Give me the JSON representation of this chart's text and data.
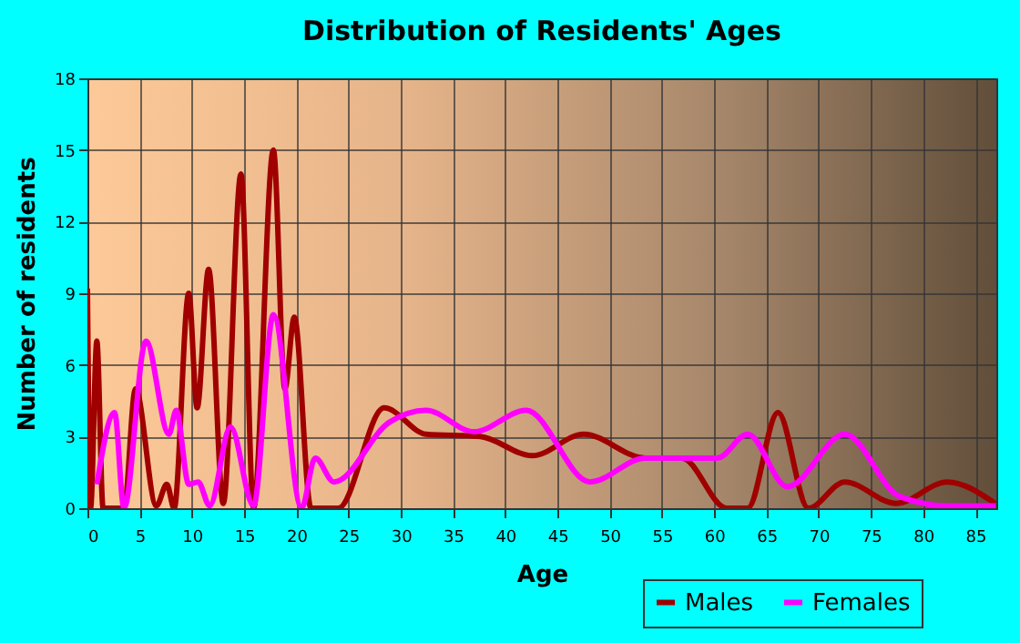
{
  "chart_data": {
    "type": "line",
    "title": "Distribution of Residents' Ages",
    "xlabel": "Age",
    "ylabel": "Number of residents",
    "xlim": [
      0,
      87
    ],
    "ylim": [
      0,
      18
    ],
    "xticks": [
      0,
      5,
      10,
      15,
      20,
      25,
      30,
      35,
      40,
      45,
      50,
      55,
      60,
      65,
      70,
      75,
      80,
      85
    ],
    "yticks": [
      0,
      3,
      6,
      9,
      12,
      15,
      18
    ],
    "grid": true,
    "legend": "bottom right",
    "marker": "none",
    "line_style": "solid",
    "series": [
      {
        "name": "Males",
        "color": "#a00000",
        "x": [
          0,
          0.3,
          0.9,
          1.5,
          3.5,
          4.6,
          6.6,
          7.6,
          8.3,
          9.7,
          10.5,
          11.6,
          13,
          14.7,
          15.9,
          17.8,
          18.9,
          19.8,
          21.4,
          24,
          28.4,
          32.4,
          37.6,
          42.6,
          47.5,
          53.4,
          56.9,
          61.2,
          63.2,
          66.1,
          69,
          72.5,
          77.4,
          82.3,
          86.9
        ],
        "values": [
          9.2,
          0,
          7,
          0,
          0,
          5,
          0.1,
          1,
          0,
          9,
          4.2,
          10,
          0.2,
          14,
          0,
          15,
          5,
          8,
          0,
          0,
          4.2,
          3.1,
          3,
          2.2,
          3.1,
          2.1,
          2.1,
          0,
          0,
          4,
          0,
          1.1,
          0.2,
          1.1,
          0.2
        ]
      },
      {
        "name": "Females",
        "color": "#ff00ff",
        "x": [
          0.9,
          2.6,
          3.5,
          5.6,
          7.8,
          8.5,
          9.7,
          10.6,
          11.7,
          13.7,
          15.9,
          17.8,
          20.5,
          21.8,
          23.6,
          28.9,
          32.4,
          37,
          42,
          48.1,
          53.4,
          60.3,
          63.2,
          67,
          72.5,
          77.7,
          82.3,
          86.9
        ],
        "values": [
          1,
          4,
          0,
          7,
          3.1,
          4.1,
          1,
          1.1,
          0.1,
          3.4,
          0.1,
          8.1,
          0,
          2.1,
          1.1,
          3.6,
          4.1,
          3.2,
          4.1,
          1.1,
          2.1,
          2.1,
          3.1,
          0.9,
          3.1,
          0.5,
          0.1,
          0.1
        ]
      }
    ]
  }
}
